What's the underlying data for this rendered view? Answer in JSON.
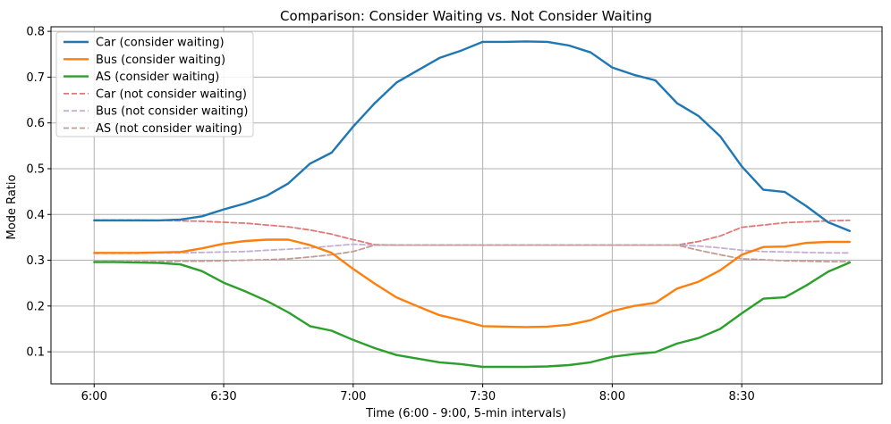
{
  "chart_data": {
    "type": "line",
    "title": "Comparison: Consider Waiting vs. Not Consider Waiting",
    "xlabel": "Time (6:00 - 9:00, 5-min intervals)",
    "ylabel": "Mode Ratio",
    "xlim": [
      -2,
      36.5
    ],
    "ylim": [
      0.03,
      0.81
    ],
    "grid": true,
    "legend_position": "upper-left",
    "xticks": [
      0,
      6,
      12,
      18,
      24,
      30
    ],
    "xtick_labels": [
      "6:00",
      "6:30",
      "7:00",
      "7:30",
      "8:00",
      "8:30"
    ],
    "yticks": [
      0.1,
      0.2,
      0.3,
      0.4,
      0.5,
      0.6,
      0.7,
      0.8
    ],
    "ytick_labels": [
      "0.1",
      "0.2",
      "0.3",
      "0.4",
      "0.5",
      "0.6",
      "0.7",
      "0.8"
    ],
    "x": [
      0,
      1,
      2,
      3,
      4,
      5,
      6,
      7,
      8,
      9,
      10,
      11,
      12,
      13,
      14,
      15,
      16,
      17,
      18,
      19,
      20,
      21,
      22,
      23,
      24,
      25,
      26,
      27,
      28,
      29,
      30,
      31,
      32,
      33,
      34,
      35
    ],
    "series": [
      {
        "name": "Car (consider waiting)",
        "color": "#1f77b4",
        "style": "solid",
        "values": [
          0.387,
          0.387,
          0.387,
          0.387,
          0.389,
          0.396,
          0.411,
          0.424,
          0.441,
          0.468,
          0.511,
          0.535,
          0.592,
          0.643,
          0.688,
          0.715,
          0.742,
          0.758,
          0.777,
          0.777,
          0.778,
          0.777,
          0.769,
          0.754,
          0.721,
          0.705,
          0.693,
          0.643,
          0.615,
          0.571,
          0.505,
          0.454,
          0.449,
          0.418,
          0.383,
          0.364
        ]
      },
      {
        "name": "Bus (consider waiting)",
        "color": "#ff7f0e",
        "style": "solid",
        "values": [
          0.316,
          0.316,
          0.316,
          0.317,
          0.318,
          0.326,
          0.336,
          0.342,
          0.345,
          0.345,
          0.333,
          0.316,
          0.281,
          0.249,
          0.219,
          0.199,
          0.18,
          0.169,
          0.156,
          0.155,
          0.154,
          0.155,
          0.159,
          0.169,
          0.189,
          0.2,
          0.207,
          0.238,
          0.253,
          0.278,
          0.312,
          0.329,
          0.33,
          0.338,
          0.34,
          0.34
        ]
      },
      {
        "name": "AS (consider waiting)",
        "color": "#2ca02c",
        "style": "solid",
        "values": [
          0.296,
          0.296,
          0.295,
          0.294,
          0.291,
          0.276,
          0.251,
          0.232,
          0.211,
          0.186,
          0.156,
          0.146,
          0.126,
          0.108,
          0.093,
          0.085,
          0.077,
          0.073,
          0.067,
          0.067,
          0.067,
          0.068,
          0.071,
          0.077,
          0.089,
          0.095,
          0.099,
          0.118,
          0.13,
          0.15,
          0.184,
          0.216,
          0.219,
          0.245,
          0.275,
          0.295
        ]
      },
      {
        "name": "Car (not consider waiting)",
        "color": "#e37777",
        "style": "dashed",
        "values": [
          0.388,
          0.388,
          0.388,
          0.387,
          0.386,
          0.385,
          0.383,
          0.381,
          0.377,
          0.373,
          0.366,
          0.357,
          0.345,
          0.334,
          0.333,
          0.333,
          0.333,
          0.333,
          0.333,
          0.333,
          0.333,
          0.333,
          0.333,
          0.333,
          0.333,
          0.333,
          0.333,
          0.333,
          0.341,
          0.353,
          0.372,
          0.377,
          0.382,
          0.384,
          0.386,
          0.387
        ]
      },
      {
        "name": "Bus (not consider waiting)",
        "color": "#c5b0d5",
        "style": "dashed",
        "values": [
          0.315,
          0.315,
          0.315,
          0.316,
          0.316,
          0.317,
          0.318,
          0.319,
          0.322,
          0.324,
          0.327,
          0.331,
          0.335,
          0.333,
          0.333,
          0.333,
          0.333,
          0.333,
          0.333,
          0.333,
          0.333,
          0.333,
          0.333,
          0.333,
          0.333,
          0.333,
          0.333,
          0.333,
          0.331,
          0.327,
          0.322,
          0.319,
          0.318,
          0.317,
          0.316,
          0.316
        ]
      },
      {
        "name": "AS (not consider waiting)",
        "color": "#c49c94",
        "style": "dashed",
        "values": [
          0.297,
          0.297,
          0.297,
          0.297,
          0.298,
          0.298,
          0.299,
          0.3,
          0.301,
          0.303,
          0.307,
          0.312,
          0.319,
          0.333,
          0.333,
          0.333,
          0.333,
          0.333,
          0.333,
          0.333,
          0.333,
          0.333,
          0.333,
          0.333,
          0.333,
          0.333,
          0.333,
          0.333,
          0.322,
          0.312,
          0.303,
          0.301,
          0.299,
          0.298,
          0.297,
          0.297
        ]
      }
    ]
  }
}
